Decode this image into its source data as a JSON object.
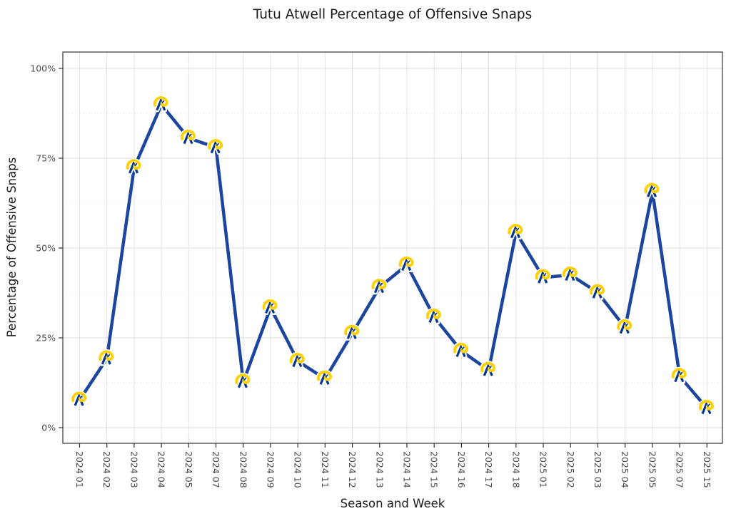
{
  "title": "Tutu Atwell Percentage of Offensive Snaps",
  "chart_data": {
    "type": "line",
    "title": "Tutu Atwell Percentage of Offensive Snaps",
    "xlabel": "Season and Week",
    "ylabel": "Percentage of Offensive Snaps",
    "categories": [
      "2024 01",
      "2024 02",
      "2024 03",
      "2024 04",
      "2024 05",
      "2024 07",
      "2024 08",
      "2024 09",
      "2024 10",
      "2024 11",
      "2024 12",
      "2024 13",
      "2024 14",
      "2024 15",
      "2024 16",
      "2024 17",
      "2024 18",
      "2025 01",
      "2025 02",
      "2025 03",
      "2025 04",
      "2025 05",
      "2025 07",
      "2025 15"
    ],
    "values": [
      7.7,
      19.2,
      72.4,
      89.9,
      80.6,
      78.0,
      12.7,
      33.4,
      18.5,
      13.6,
      26.3,
      39.1,
      45.3,
      30.8,
      21.3,
      16.0,
      54.4,
      41.8,
      42.5,
      37.6,
      27.8,
      65.8,
      14.3,
      5.4
    ],
    "yticks": [
      0,
      25,
      50,
      75,
      100
    ],
    "ytick_labels": [
      "0%",
      "25%",
      "50%",
      "75%",
      "100%"
    ],
    "yminor_ticks": [
      12.5,
      37.5,
      62.5,
      87.5
    ],
    "ylim": [
      -4.5,
      104.5
    ],
    "grid": {
      "major": true,
      "minor": true
    },
    "legend": "none",
    "marker": "la-rams-logo",
    "colors": {
      "line": "#1b459f",
      "marker_gold": "#ffd100",
      "marker_blue": "#003594",
      "marker_outline": "#ffffff",
      "grid_major": "#e3e3e3",
      "grid_minor": "#eeeeee",
      "panel_border": "#333333",
      "tick": "#333333",
      "tick_label": "#4d4d4d",
      "title_text": "#1a1a1a"
    }
  }
}
